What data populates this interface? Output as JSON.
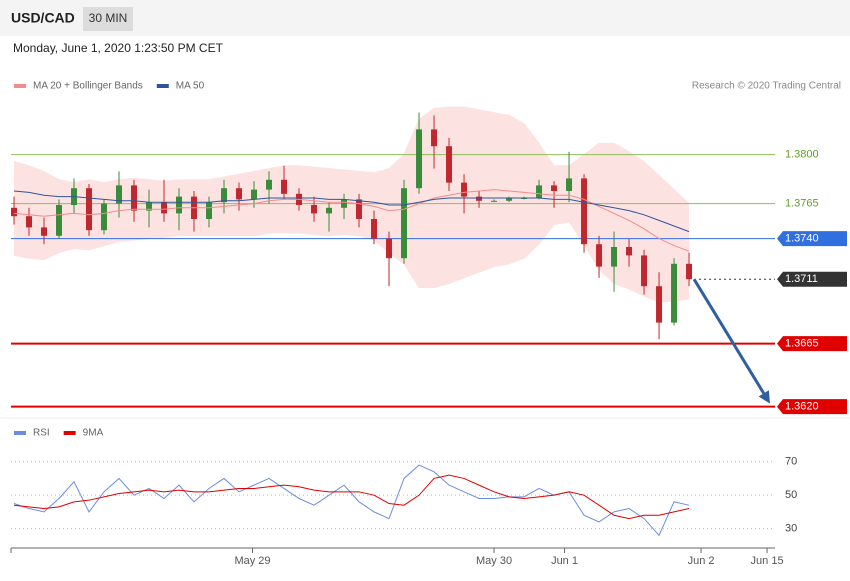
{
  "header": {
    "symbol": "USD/CAD",
    "interval": "30 MIN",
    "timestamp": "Monday, June 1, 2020 1:23:50 PM CET"
  },
  "chart_data": [
    {
      "type": "candlestick",
      "credit": "Research © 2020 Trading Central",
      "up_color": "#3a8c3a",
      "down_color": "#c0282f",
      "xlim": [
        -0.2,
        50.73
      ],
      "ylim": [
        1.3614,
        1.3839
      ],
      "ohlc": [
        [
          1.3762,
          1.377,
          1.375,
          1.3756
        ],
        [
          1.3756,
          1.3762,
          1.3742,
          1.3748
        ],
        [
          1.3748,
          1.3755,
          1.3736,
          1.3742
        ],
        [
          1.3742,
          1.3768,
          1.374,
          1.3764
        ],
        [
          1.3764,
          1.3783,
          1.3758,
          1.3776
        ],
        [
          1.3776,
          1.3779,
          1.3742,
          1.3746
        ],
        [
          1.3746,
          1.3768,
          1.3743,
          1.3765
        ],
        [
          1.3765,
          1.3788,
          1.3755,
          1.3778
        ],
        [
          1.3778,
          1.3782,
          1.3752,
          1.376
        ],
        [
          1.376,
          1.3775,
          1.3748,
          1.3766
        ],
        [
          1.3766,
          1.3782,
          1.3752,
          1.3758
        ],
        [
          1.3758,
          1.3776,
          1.3746,
          1.377
        ],
        [
          1.377,
          1.3774,
          1.3745,
          1.3754
        ],
        [
          1.3754,
          1.377,
          1.3748,
          1.3766
        ],
        [
          1.3766,
          1.3782,
          1.3758,
          1.3776
        ],
        [
          1.3776,
          1.378,
          1.376,
          1.3768
        ],
        [
          1.3768,
          1.3781,
          1.3762,
          1.3775
        ],
        [
          1.3775,
          1.3788,
          1.3765,
          1.3782
        ],
        [
          1.3782,
          1.3792,
          1.3768,
          1.3772
        ],
        [
          1.3772,
          1.3776,
          1.376,
          1.3764
        ],
        [
          1.3764,
          1.377,
          1.3752,
          1.3758
        ],
        [
          1.3758,
          1.3766,
          1.3745,
          1.3762
        ],
        [
          1.3762,
          1.3772,
          1.3754,
          1.3768
        ],
        [
          1.3768,
          1.3772,
          1.3748,
          1.3754
        ],
        [
          1.3754,
          1.376,
          1.3736,
          1.374
        ],
        [
          1.374,
          1.3745,
          1.3706,
          1.3726
        ],
        [
          1.3726,
          1.3782,
          1.3722,
          1.3776
        ],
        [
          1.3776,
          1.383,
          1.3772,
          1.3818
        ],
        [
          1.3818,
          1.3828,
          1.379,
          1.3806
        ],
        [
          1.3806,
          1.3812,
          1.3774,
          1.378
        ],
        [
          1.378,
          1.3786,
          1.3758,
          1.377
        ],
        [
          1.377,
          1.3774,
          1.3762,
          1.3767
        ],
        [
          1.3767,
          1.3768,
          1.3766,
          1.3767
        ],
        [
          1.3767,
          1.377,
          1.3766,
          1.3769
        ],
        [
          1.3769,
          1.377,
          1.3768,
          1.3769
        ],
        [
          1.3769,
          1.3782,
          1.3768,
          1.3778
        ],
        [
          1.3778,
          1.3781,
          1.3762,
          1.3774
        ],
        [
          1.3774,
          1.3802,
          1.3766,
          1.3783
        ],
        [
          1.3783,
          1.3786,
          1.373,
          1.3736
        ],
        [
          1.3736,
          1.3742,
          1.3712,
          1.372
        ],
        [
          1.372,
          1.3745,
          1.3702,
          1.3734
        ],
        [
          1.3734,
          1.374,
          1.372,
          1.3728
        ],
        [
          1.3728,
          1.3732,
          1.37,
          1.3706
        ],
        [
          1.3706,
          1.3716,
          1.3668,
          1.368
        ],
        [
          1.368,
          1.3726,
          1.3678,
          1.3722
        ],
        [
          1.3722,
          1.373,
          1.3706,
          1.3711
        ]
      ],
      "series": [
        {
          "name": "MA 20 + Bollinger Bands",
          "color": "#f28b8b",
          "band_color": "#fde2e2",
          "values": [
            1.3758,
            1.3757,
            1.3756,
            1.3757,
            1.3758,
            1.3757,
            1.3758,
            1.376,
            1.3761,
            1.3761,
            1.3761,
            1.3762,
            1.3762,
            1.3762,
            1.3763,
            1.3764,
            1.3765,
            1.3767,
            1.3768,
            1.3768,
            1.3767,
            1.3766,
            1.3766,
            1.3765,
            1.3763,
            1.376,
            1.3761,
            1.3765,
            1.3769,
            1.3771,
            1.3773,
            1.3774,
            1.3775,
            1.3774,
            1.3773,
            1.3772,
            1.3771,
            1.3771,
            1.3768,
            1.3763,
            1.3758,
            1.3753,
            1.3747,
            1.374,
            1.3735,
            1.3731
          ],
          "upper": [
            1.3795,
            1.3792,
            1.3788,
            1.3782,
            1.378,
            1.3782,
            1.378,
            1.3782,
            1.3783,
            1.3782,
            1.3781,
            1.3782,
            1.3782,
            1.3782,
            1.3784,
            1.3786,
            1.3788,
            1.379,
            1.3792,
            1.3792,
            1.3791,
            1.379,
            1.3789,
            1.3788,
            1.3787,
            1.379,
            1.38,
            1.3825,
            1.3833,
            1.3834,
            1.3834,
            1.3832,
            1.383,
            1.3828,
            1.3822,
            1.3808,
            1.3792,
            1.3792,
            1.38,
            1.3808,
            1.3808,
            1.3802,
            1.3795,
            1.3785,
            1.3775,
            1.3765
          ],
          "lower": [
            1.3728,
            1.3726,
            1.3725,
            1.373,
            1.3733,
            1.3732,
            1.3735,
            1.3738,
            1.3739,
            1.374,
            1.3741,
            1.3742,
            1.3742,
            1.3742,
            1.3742,
            1.3742,
            1.3742,
            1.3744,
            1.3744,
            1.3744,
            1.3743,
            1.3742,
            1.3743,
            1.3742,
            1.3739,
            1.373,
            1.3722,
            1.3705,
            1.3705,
            1.3708,
            1.3712,
            1.3716,
            1.372,
            1.3722,
            1.3726,
            1.3736,
            1.375,
            1.3752,
            1.3736,
            1.3718,
            1.3708,
            1.3704,
            1.3699,
            1.3695,
            1.3695,
            1.3697
          ]
        },
        {
          "name": "MA 50",
          "color": "#2f5597",
          "values": [
            1.3774,
            1.3773,
            1.3771,
            1.377,
            1.377,
            1.3769,
            1.3768,
            1.3767,
            1.3767,
            1.3766,
            1.3766,
            1.3766,
            1.3766,
            1.3766,
            1.3767,
            1.3767,
            1.3768,
            1.3769,
            1.3769,
            1.3769,
            1.3769,
            1.3768,
            1.3768,
            1.3767,
            1.3766,
            1.3764,
            1.3764,
            1.3766,
            1.3768,
            1.3769,
            1.3769,
            1.3769,
            1.3769,
            1.3769,
            1.3769,
            1.3769,
            1.3768,
            1.3768,
            1.3766,
            1.3764,
            1.3762,
            1.376,
            1.3757,
            1.3753,
            1.3749,
            1.3745
          ]
        }
      ],
      "levels": [
        {
          "value": 1.38,
          "label": "1.3800",
          "color": "#8fbf5a",
          "line": "solid",
          "box": false
        },
        {
          "value": 1.3765,
          "label": "1.3765",
          "color": "#8fbf5a",
          "line": "solid",
          "box": false
        },
        {
          "value": 1.374,
          "label": "1.3740",
          "color": "#2f6fe0",
          "line": "solid",
          "box": true
        },
        {
          "value": 1.3711,
          "label": "1.3711",
          "color": "#333333",
          "line": "dotted",
          "box": true
        },
        {
          "value": 1.3665,
          "label": "1.3665",
          "color": "#e00000",
          "line": "thick",
          "box": true
        },
        {
          "value": 1.362,
          "label": "1.3620",
          "color": "#e00000",
          "line": "thick",
          "box": true
        }
      ]
    },
    {
      "type": "line",
      "xlim": [
        -0.2,
        50.73
      ],
      "ylim": [
        19,
        80
      ],
      "yticks": [
        70,
        50,
        30
      ],
      "grid": true,
      "xticks": [
        {
          "value": 15.9,
          "label": "May 29"
        },
        {
          "value": 32,
          "label": "May 30"
        },
        {
          "value": 36.7,
          "label": "Jun 1"
        },
        {
          "value": 45.8,
          "label": "Jun 2"
        },
        {
          "value": 50.2,
          "label": "Jun 15"
        }
      ],
      "series": [
        {
          "name": "RSI",
          "color": "#6b8de0",
          "values": [
            45,
            42,
            40,
            48,
            58,
            40,
            52,
            60,
            50,
            54,
            48,
            56,
            46,
            54,
            60,
            52,
            56,
            60,
            54,
            48,
            44,
            50,
            56,
            46,
            40,
            36,
            60,
            68,
            64,
            56,
            52,
            48,
            48,
            49,
            49,
            54,
            50,
            52,
            38,
            34,
            40,
            42,
            36,
            26,
            46,
            44
          ]
        },
        {
          "name": "9MA",
          "color": "#e00000",
          "values": [
            44,
            43,
            42,
            43,
            46,
            47,
            49,
            51,
            52,
            53,
            52,
            53,
            52,
            52,
            53,
            54,
            54,
            55,
            56,
            55,
            53,
            52,
            52,
            52,
            50,
            45,
            44,
            50,
            60,
            62,
            60,
            56,
            52,
            49,
            48,
            49,
            50,
            52,
            50,
            44,
            38,
            36,
            38,
            38,
            40,
            42
          ]
        }
      ]
    }
  ]
}
